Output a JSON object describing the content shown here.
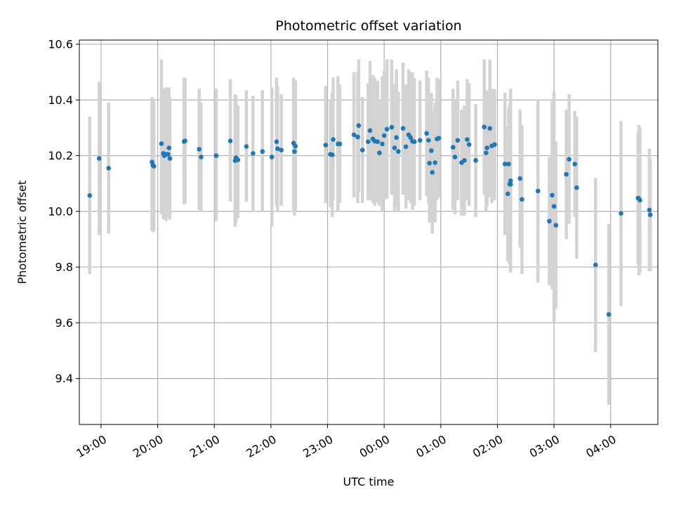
{
  "chart_data": {
    "type": "scatter",
    "title": "Photometric offset variation",
    "xlabel": "UTC time",
    "ylabel": "Photometric offset",
    "x_axis_kind": "time",
    "x_ticks": [
      "19:00",
      "20:00",
      "21:00",
      "22:00",
      "23:00",
      "00:00",
      "01:00",
      "02:00",
      "03:00",
      "04:00"
    ],
    "y_ticks": [
      "9.4",
      "9.6",
      "9.8",
      "10.0",
      "10.2",
      "10.4",
      "10.6"
    ],
    "ylim": [
      9.235,
      10.615
    ],
    "xlim": [
      "18:37",
      "04:50"
    ],
    "grid": true,
    "colors": {
      "points": "#1f77b4",
      "errorbars": "#d3d3d3"
    },
    "series": [
      {
        "errorbars": true,
        "points": [
          [
            "18:48",
            10.057,
            9.775,
            10.34
          ],
          [
            "18:58",
            10.19,
            9.915,
            10.465
          ],
          [
            "19:08",
            10.155,
            9.92,
            10.39
          ],
          [
            "19:54",
            10.177,
            9.93,
            10.41
          ],
          [
            "19:55",
            10.165,
            9.925,
            10.405
          ],
          [
            "19:56",
            10.162,
            9.93,
            10.395
          ],
          [
            "20:04",
            10.243,
            9.99,
            10.545
          ],
          [
            "20:06",
            10.208,
            9.975,
            10.44
          ],
          [
            "20:07",
            10.2,
            9.97,
            10.43
          ],
          [
            "20:09",
            10.205,
            9.965,
            10.445
          ],
          [
            "20:11",
            10.205,
            9.98,
            10.43
          ],
          [
            "20:12",
            10.228,
            10.01,
            10.445
          ],
          [
            "20:13",
            10.19,
            9.97,
            10.41
          ],
          [
            "20:28",
            10.251,
            10.025,
            10.48
          ],
          [
            "20:29",
            10.253,
            10.03,
            10.48
          ],
          [
            "20:44",
            10.223,
            10.005,
            10.44
          ],
          [
            "20:46",
            10.195,
            10.0,
            10.39
          ],
          [
            "21:02",
            10.2,
            9.965,
            10.44
          ],
          [
            "21:17",
            10.253,
            10.035,
            10.475
          ],
          [
            "21:22",
            10.182,
            9.945,
            10.42
          ],
          [
            "21:23",
            10.193,
            9.96,
            10.415
          ],
          [
            "21:25",
            10.185,
            9.975,
            10.38
          ],
          [
            "21:34",
            10.233,
            10.035,
            10.435
          ],
          [
            "21:41",
            10.208,
            10.0,
            10.415
          ],
          [
            "21:51",
            10.215,
            10.0,
            10.435
          ],
          [
            "22:01",
            10.195,
            9.945,
            10.445
          ],
          [
            "22:06",
            10.25,
            10.02,
            10.48
          ],
          [
            "22:07",
            10.225,
            10.0,
            10.45
          ],
          [
            "22:11",
            10.22,
            10.02,
            10.42
          ],
          [
            "22:24",
            10.245,
            10.005,
            10.48
          ],
          [
            "22:25",
            10.215,
            9.985,
            10.445
          ],
          [
            "22:26",
            10.234,
            10.0,
            10.47
          ],
          [
            "22:58",
            10.238,
            10.03,
            10.45
          ],
          [
            "23:03",
            10.205,
            10.015,
            10.4
          ],
          [
            "23:05",
            10.203,
            9.98,
            10.425
          ],
          [
            "23:06",
            10.258,
            10.04,
            10.48
          ],
          [
            "23:11",
            10.242,
            10.0,
            10.485
          ],
          [
            "23:13",
            10.242,
            10.03,
            10.455
          ],
          [
            "23:28",
            10.275,
            10.05,
            10.5
          ],
          [
            "23:32",
            10.267,
            10.03,
            10.5
          ],
          [
            "23:33",
            10.308,
            10.07,
            10.545
          ],
          [
            "23:37",
            10.22,
            10.03,
            10.41
          ],
          [
            "23:43",
            10.25,
            10.04,
            10.46
          ],
          [
            "23:45",
            10.29,
            10.04,
            10.54
          ],
          [
            "23:48",
            10.26,
            10.03,
            10.49
          ],
          [
            "23:50",
            10.252,
            10.02,
            10.48
          ],
          [
            "23:53",
            10.25,
            10.03,
            10.47
          ],
          [
            "23:55",
            10.21,
            10.02,
            10.4
          ],
          [
            "23:58",
            10.242,
            10.0,
            10.485
          ],
          [
            "24:00",
            10.272,
            10.04,
            10.505
          ],
          [
            "24:03",
            10.295,
            10.045,
            10.545
          ],
          [
            "24:08",
            10.302,
            10.06,
            10.545
          ],
          [
            "24:11",
            10.228,
            10.0,
            10.455
          ],
          [
            "24:13",
            10.265,
            10.02,
            10.51
          ],
          [
            "24:15",
            10.215,
            10.0,
            10.43
          ],
          [
            "24:20",
            10.298,
            10.06,
            10.535
          ],
          [
            "24:23",
            10.232,
            10.01,
            10.455
          ],
          [
            "24:26",
            10.275,
            10.04,
            10.51
          ],
          [
            "24:28",
            10.265,
            10.03,
            10.5
          ],
          [
            "24:30",
            10.252,
            10.005,
            10.5
          ],
          [
            "24:32",
            10.25,
            10.02,
            10.48
          ],
          [
            "24:38",
            10.255,
            10.04,
            10.47
          ],
          [
            "24:45",
            10.28,
            10.055,
            10.505
          ],
          [
            "24:47",
            10.255,
            10.03,
            10.48
          ],
          [
            "24:48",
            10.173,
            9.96,
            10.385
          ],
          [
            "24:50",
            10.218,
            10.01,
            10.425
          ],
          [
            "24:51",
            10.14,
            9.92,
            10.36
          ],
          [
            "24:54",
            10.175,
            9.96,
            10.39
          ],
          [
            "24:56",
            10.26,
            10.04,
            10.48
          ],
          [
            "24:58",
            10.263,
            10.05,
            10.475
          ],
          [
            "25:13",
            10.23,
            10.005,
            10.44
          ],
          [
            "25:15",
            10.195,
            9.99,
            10.4
          ],
          [
            "25:18",
            10.255,
            10.04,
            10.47
          ],
          [
            "25:22",
            10.175,
            9.985,
            10.365
          ],
          [
            "25:25",
            10.183,
            9.985,
            10.38
          ],
          [
            "25:28",
            10.258,
            10.04,
            10.475
          ],
          [
            "25:30",
            10.24,
            10.02,
            10.46
          ],
          [
            "25:37",
            10.183,
            9.98,
            10.385
          ],
          [
            "25:46",
            10.303,
            10.06,
            10.545
          ],
          [
            "25:48",
            10.21,
            10.0,
            10.42
          ],
          [
            "25:49",
            10.228,
            10.02,
            10.435
          ],
          [
            "25:52",
            10.298,
            10.05,
            10.545
          ],
          [
            "25:54",
            10.235,
            10.03,
            10.44
          ],
          [
            "25:57",
            10.24,
            10.04,
            10.44
          ],
          [
            "26:08",
            10.17,
            9.915,
            10.425
          ],
          [
            "26:11",
            10.063,
            9.82,
            10.305
          ],
          [
            "26:12",
            10.17,
            9.97,
            10.37
          ],
          [
            "26:13",
            10.098,
            9.81,
            10.385
          ],
          [
            "26:14",
            10.11,
            9.78,
            10.44
          ],
          [
            "26:14",
            10.097,
            9.79,
            10.4
          ],
          [
            "26:24",
            10.118,
            9.87,
            10.365
          ],
          [
            "26:26",
            10.043,
            9.775,
            10.31
          ],
          [
            "26:43",
            10.073,
            9.745,
            10.4
          ],
          [
            "26:55",
            9.965,
            9.735,
            10.195
          ],
          [
            "26:58",
            10.058,
            9.72,
            10.395
          ],
          [
            "27:00",
            10.018,
            9.605,
            10.43
          ],
          [
            "27:02",
            9.95,
            9.65,
            10.25
          ],
          [
            "27:13",
            10.133,
            9.9,
            10.365
          ],
          [
            "27:16",
            10.187,
            9.955,
            10.42
          ],
          [
            "27:22",
            10.17,
            9.98,
            10.36
          ],
          [
            "27:24",
            10.085,
            9.83,
            10.34
          ],
          [
            "27:44",
            9.808,
            9.495,
            10.12
          ],
          [
            "27:58",
            9.63,
            9.305,
            9.955
          ],
          [
            "28:11",
            9.993,
            9.66,
            10.325
          ],
          [
            "28:29",
            10.048,
            9.81,
            10.285
          ],
          [
            "28:30",
            10.045,
            9.77,
            10.31
          ],
          [
            "28:31",
            10.04,
            9.78,
            10.3
          ],
          [
            "28:41",
            10.005,
            9.785,
            10.225
          ],
          [
            "28:42",
            9.988,
            9.785,
            10.19
          ]
        ]
      }
    ]
  }
}
